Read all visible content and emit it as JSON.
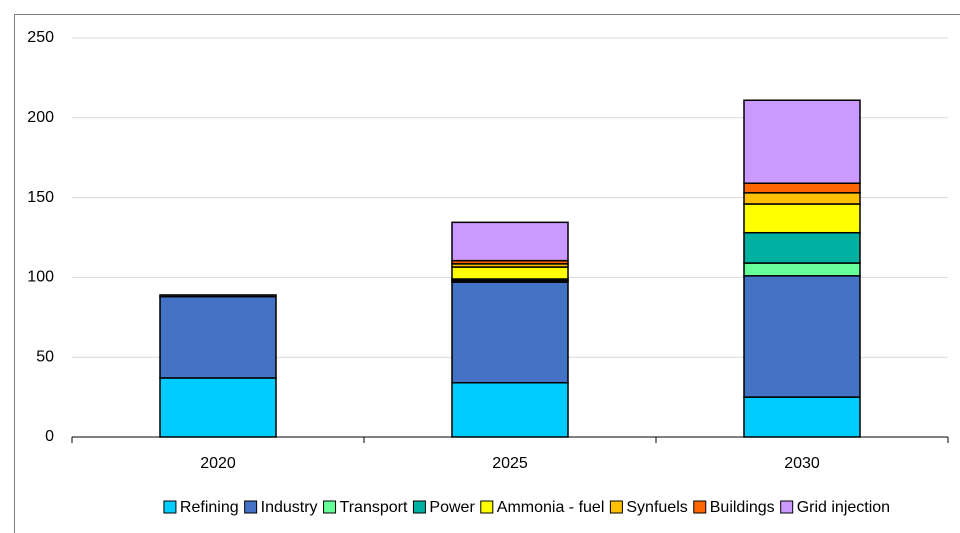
{
  "chart_data": {
    "type": "stacked_bar",
    "categories": [
      "2020",
      "2025",
      "2030"
    ],
    "series": [
      {
        "name": "Refining",
        "color": "#00ccff",
        "values": [
          37,
          34,
          25
        ]
      },
      {
        "name": "Industry",
        "color": "#4472c4",
        "values": [
          51,
          63,
          76
        ]
      },
      {
        "name": "Transport",
        "color": "#66ff99",
        "values": [
          1,
          1,
          8
        ]
      },
      {
        "name": "Power",
        "color": "#00b0a0",
        "values": [
          0,
          1,
          19
        ]
      },
      {
        "name": "Ammonia - fuel",
        "color": "#ffff00",
        "values": [
          0,
          7.5,
          18
        ]
      },
      {
        "name": "Synfuels",
        "color": "#ffc000",
        "values": [
          0,
          2,
          7
        ]
      },
      {
        "name": "Buildings",
        "color": "#ff6600",
        "values": [
          0,
          2,
          6
        ]
      },
      {
        "name": "Grid injection",
        "color": "#cc99ff",
        "values": [
          0,
          24,
          52
        ]
      }
    ],
    "ylim": [
      0,
      250
    ],
    "yticks": [
      0,
      50,
      100,
      150,
      200,
      250
    ],
    "grid": true,
    "legend": "bottom"
  }
}
